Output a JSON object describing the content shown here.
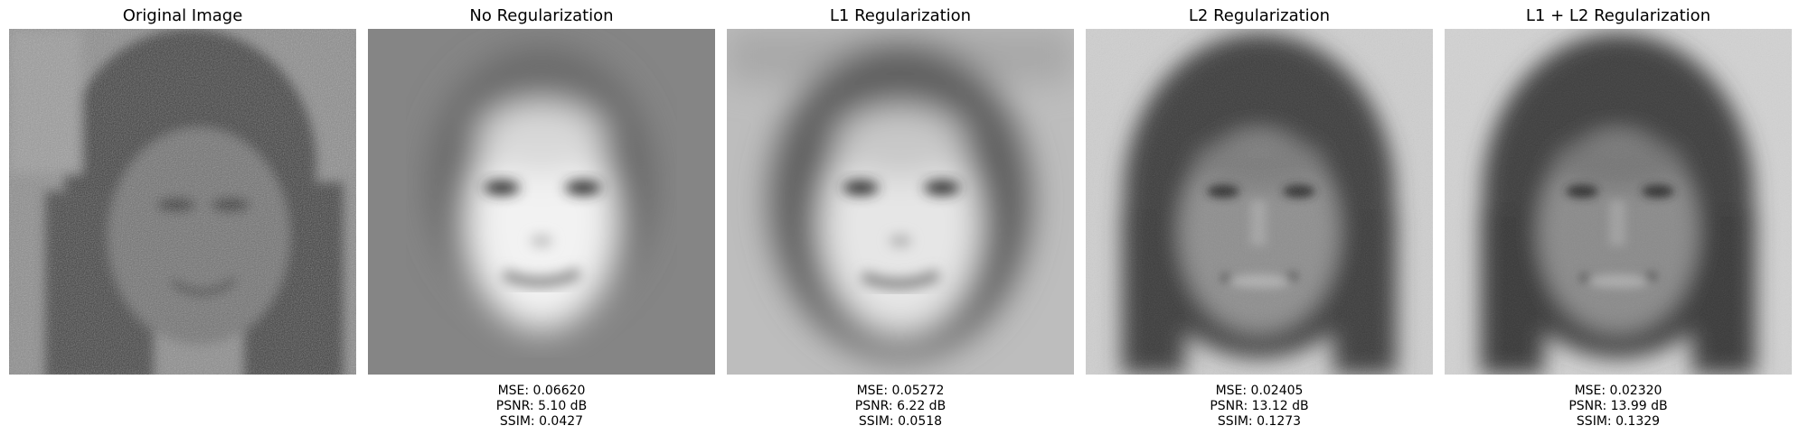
{
  "panels": [
    {
      "title": "Original Image",
      "metrics": null
    },
    {
      "title": "No Regularization",
      "metrics": {
        "mse": "MSE: 0.06620",
        "psnr": "PSNR: 5.10 dB",
        "ssim": "SSIM: 0.0427"
      }
    },
    {
      "title": "L1 Regularization",
      "metrics": {
        "mse": "MSE: 0.05272",
        "psnr": "PSNR: 6.22 dB",
        "ssim": "SSIM: 0.0518"
      }
    },
    {
      "title": "L2 Regularization",
      "metrics": {
        "mse": "MSE: 0.02405",
        "psnr": "PSNR: 13.12 dB",
        "ssim": "SSIM: 0.1273"
      }
    },
    {
      "title": "L1 + L2 Regularization",
      "metrics": {
        "mse": "MSE: 0.02320",
        "psnr": "PSNR: 13.99 dB",
        "ssim": "SSIM: 0.1329"
      }
    }
  ]
}
